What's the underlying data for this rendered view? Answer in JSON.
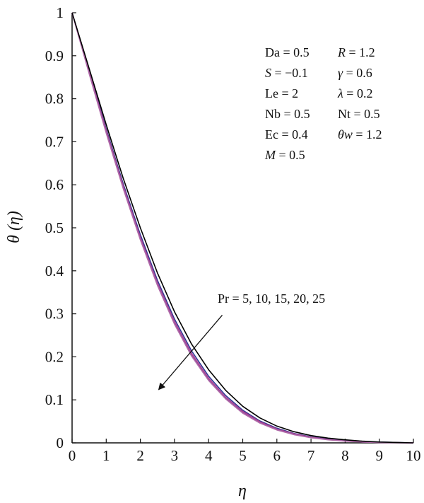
{
  "chart_data": {
    "type": "line",
    "xlabel": "η",
    "ylabel": "θ (η)",
    "xlim": [
      0,
      10
    ],
    "ylim": [
      0,
      1
    ],
    "x_ticks": [
      "0",
      "1",
      "2",
      "3",
      "4",
      "5",
      "6",
      "7",
      "8",
      "9",
      "10"
    ],
    "y_ticks": [
      "0",
      "0.1",
      "0.2",
      "0.3",
      "0.4",
      "0.5",
      "0.6",
      "0.7",
      "0.8",
      "0.9",
      "1"
    ],
    "grid": false,
    "x": [
      0,
      0.5,
      1,
      1.5,
      2,
      2.5,
      3,
      3.5,
      4,
      4.5,
      5,
      5.5,
      6,
      6.5,
      7,
      7.5,
      8,
      8.5,
      9,
      9.5,
      10
    ],
    "series": [
      {
        "color": "#000000",
        "values": [
          1.0,
          0.87,
          0.74,
          0.615,
          0.5,
          0.395,
          0.305,
          0.23,
          0.17,
          0.122,
          0.085,
          0.058,
          0.039,
          0.026,
          0.017,
          0.011,
          0.007,
          0.004,
          0.002,
          0.001,
          0.0
        ]
      },
      {
        "color": "#2f3a96",
        "values": [
          1.0,
          0.865,
          0.73,
          0.602,
          0.484,
          0.378,
          0.288,
          0.214,
          0.155,
          0.11,
          0.076,
          0.051,
          0.034,
          0.022,
          0.014,
          0.009,
          0.005,
          0.003,
          0.002,
          0.001,
          0.0
        ]
      },
      {
        "color": "#c03a8a",
        "values": [
          1.0,
          0.862,
          0.726,
          0.597,
          0.478,
          0.372,
          0.282,
          0.208,
          0.15,
          0.106,
          0.073,
          0.049,
          0.032,
          0.021,
          0.013,
          0.008,
          0.005,
          0.003,
          0.001,
          0.0005,
          0.0
        ]
      },
      {
        "color": "#8e4fa0",
        "values": [
          1.0,
          0.86,
          0.723,
          0.594,
          0.475,
          0.369,
          0.279,
          0.205,
          0.147,
          0.104,
          0.071,
          0.047,
          0.031,
          0.02,
          0.012,
          0.008,
          0.005,
          0.002,
          0.001,
          0.0005,
          0.0
        ]
      },
      {
        "color": "#b06aa8",
        "values": [
          1.0,
          0.858,
          0.72,
          0.591,
          0.472,
          0.366,
          0.276,
          0.202,
          0.145,
          0.102,
          0.069,
          0.046,
          0.03,
          0.019,
          0.012,
          0.007,
          0.004,
          0.002,
          0.001,
          0.0005,
          0.0
        ]
      }
    ],
    "parameters_left": [
      {
        "name": "Da",
        "italic": false,
        "value": "0.5"
      },
      {
        "name": "S",
        "italic": true,
        "value": "−0.1"
      },
      {
        "name": "Le",
        "italic": false,
        "value": "2"
      },
      {
        "name": "Nb",
        "italic": false,
        "value": "0.5"
      },
      {
        "name": "Ec",
        "italic": false,
        "value": "0.4"
      },
      {
        "name": "M",
        "italic": true,
        "value": "0.5"
      }
    ],
    "parameters_right": [
      {
        "name": "R",
        "italic": true,
        "value": "1.2"
      },
      {
        "name": "γ",
        "italic": true,
        "value": "0.6"
      },
      {
        "name": "λ",
        "italic": true,
        "value": "0.2"
      },
      {
        "name": "Nt",
        "italic": false,
        "value": "0.5"
      },
      {
        "name": "θw",
        "italic": true,
        "value": "1.2"
      }
    ],
    "annotation": {
      "text": "Pr = 5, 10, 15, 20, 25",
      "arrow_from": [
        4.4,
        0.297
      ],
      "arrow_to": [
        2.55,
        0.125
      ]
    }
  }
}
